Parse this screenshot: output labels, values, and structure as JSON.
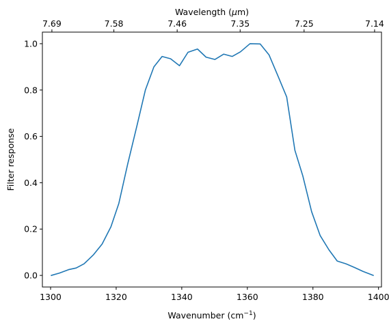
{
  "chart_data": {
    "type": "line",
    "xlabel": "Wavenumber",
    "xlabel_unit": "(cm",
    "xlabel_sup": "−1",
    "xlabel_close": ")",
    "ylabel": "Filter response",
    "top_xlabel": "Wavelength (",
    "top_xlabel_mu": "μ",
    "top_xlabel_end": "m)",
    "xlim": [
      1297.5,
      1400.9
    ],
    "ylim": [
      -0.05,
      1.05
    ],
    "x_ticks": [
      1300,
      1320,
      1340,
      1360,
      1380,
      1400
    ],
    "y_ticks": [
      0.0,
      0.2,
      0.4,
      0.6,
      0.8,
      1.0
    ],
    "y_tick_labels": [
      "0.0",
      "0.2",
      "0.4",
      "0.6",
      "0.8",
      "1.0"
    ],
    "top_ticks": [
      {
        "label": "7.69",
        "x": 1300.4
      },
      {
        "label": "7.58",
        "x": 1319.3
      },
      {
        "label": "7.46",
        "x": 1338.6
      },
      {
        "label": "7.35",
        "x": 1357.8
      },
      {
        "label": "7.25",
        "x": 1377.3
      },
      {
        "label": "7.14",
        "x": 1398.8
      }
    ],
    "series": [
      {
        "color": "#1f77b4",
        "x": [
          1300.2,
          1302.7,
          1305.5,
          1307.8,
          1310.2,
          1313.0,
          1315.7,
          1318.4,
          1320.8,
          1323.5,
          1326.4,
          1328.9,
          1331.5,
          1334.0,
          1336.6,
          1339.3,
          1341.9,
          1344.8,
          1347.4,
          1350.1,
          1352.8,
          1355.4,
          1357.9,
          1360.8,
          1363.9,
          1366.6,
          1369.5,
          1372.0,
          1374.5,
          1376.9,
          1379.6,
          1382.2,
          1384.9,
          1387.4,
          1390.1,
          1392.7,
          1395.3,
          1398.4
        ],
        "y": [
          0.0,
          0.01,
          0.025,
          0.032,
          0.05,
          0.088,
          0.135,
          0.21,
          0.31,
          0.48,
          0.65,
          0.8,
          0.9,
          0.945,
          0.935,
          0.905,
          0.963,
          0.977,
          0.942,
          0.932,
          0.955,
          0.945,
          0.965,
          1.0,
          0.999,
          0.952,
          0.855,
          0.77,
          0.54,
          0.43,
          0.275,
          0.172,
          0.11,
          0.062,
          0.05,
          0.034,
          0.017,
          0.0
        ]
      }
    ]
  }
}
